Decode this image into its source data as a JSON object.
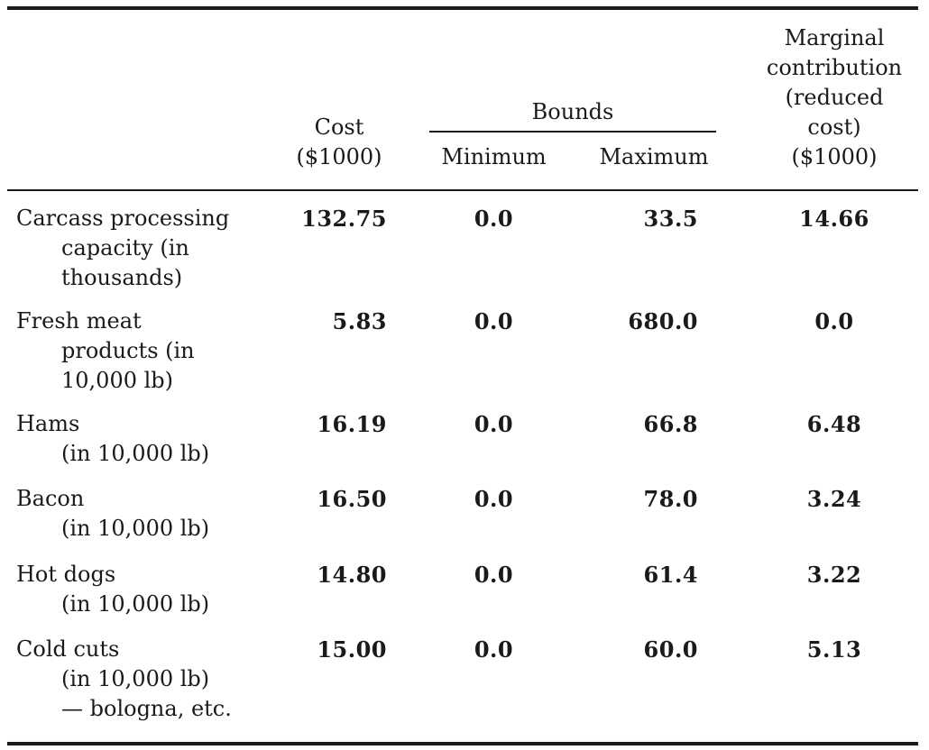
{
  "table": {
    "headers": {
      "cost": [
        "Cost",
        "($1000)"
      ],
      "bounds": "Bounds",
      "minimum": "Minimum",
      "maximum": "Maximum",
      "marginal": [
        "Marginal",
        "contribution",
        "(reduced",
        "cost)",
        "($1000)"
      ]
    },
    "rows": [
      {
        "label": [
          "Carcass processing",
          "capacity (in",
          "thousands)"
        ],
        "cost": "132.75",
        "minimum": "0.0",
        "maximum": "33.5",
        "marginal": "14.66"
      },
      {
        "label": [
          "Fresh meat",
          "products (in",
          "10,000 lb)"
        ],
        "cost": "5.83",
        "minimum": "0.0",
        "maximum": "680.0",
        "marginal": "0.0"
      },
      {
        "label": [
          "Hams",
          "(in 10,000 lb)"
        ],
        "cost": "16.19",
        "minimum": "0.0",
        "maximum": "66.8",
        "marginal": "6.48"
      },
      {
        "label": [
          "Bacon",
          "(in 10,000 lb)"
        ],
        "cost": "16.50",
        "minimum": "0.0",
        "maximum": "78.0",
        "marginal": "3.24"
      },
      {
        "label": [
          "Hot dogs",
          "(in 10,000 lb)"
        ],
        "cost": "14.80",
        "minimum": "0.0",
        "maximum": "61.4",
        "marginal": "3.22"
      },
      {
        "label": [
          "Cold cuts",
          "(in 10,000 lb)",
          "— bologna, etc."
        ],
        "cost": "15.00",
        "minimum": "0.0",
        "maximum": "60.0",
        "marginal": "5.13"
      }
    ]
  }
}
